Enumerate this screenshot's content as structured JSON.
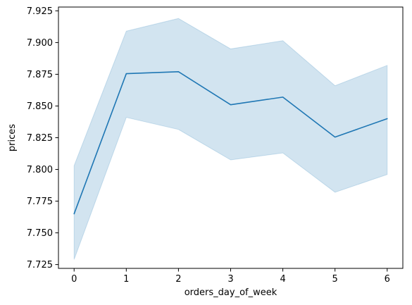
{
  "chart_data": {
    "type": "line",
    "title": "",
    "xlabel": "orders_day_of_week",
    "ylabel": "prices",
    "x": [
      0,
      1,
      2,
      3,
      4,
      5,
      6
    ],
    "xlim": [
      -0.3,
      6.3
    ],
    "ylim": [
      7.722,
      7.928
    ],
    "xticks": [
      0,
      1,
      2,
      3,
      4,
      5,
      6
    ],
    "yticks": [
      7.725,
      7.75,
      7.775,
      7.8,
      7.825,
      7.85,
      7.875,
      7.9,
      7.925
    ],
    "ytick_labels": [
      "7.725",
      "7.750",
      "7.775",
      "7.800",
      "7.825",
      "7.850",
      "7.875",
      "7.900",
      "7.925"
    ],
    "grid": false,
    "series": [
      {
        "name": "prices",
        "color": "#1f77b4",
        "values": [
          7.765,
          7.8755,
          7.877,
          7.851,
          7.857,
          7.8255,
          7.84
        ],
        "ci_lower": [
          7.729,
          7.841,
          7.8315,
          7.8075,
          7.813,
          7.782,
          7.796
        ],
        "ci_upper": [
          7.803,
          7.909,
          7.919,
          7.895,
          7.9015,
          7.866,
          7.882
        ]
      }
    ]
  }
}
